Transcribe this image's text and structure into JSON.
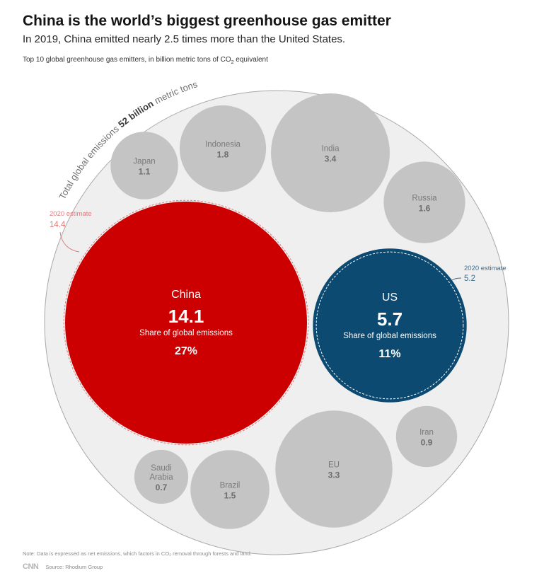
{
  "title": "China is the world’s biggest greenhouse gas emitter",
  "subtitle": "In 2019, China emitted nearly 2.5 times more than the United States.",
  "caption_main": "Top 10 global greenhouse gas emitters, in billion metric tons of CO",
  "caption_sub": "2",
  "caption_tail": " equivalent",
  "total": {
    "prefix": "Total global emissions ",
    "value": "52 billion",
    "suffix": " metric tons",
    "numeric": 52
  },
  "share_label": "Share of global emissions",
  "estimate_label": "2020 estimate",
  "chart_data": {
    "type": "bubble",
    "title": "Top 10 global greenhouse gas emitters, in billion metric tons of CO2 equivalent",
    "unit": "billion metric tons of CO2 equivalent",
    "total_emissions": 52,
    "series": [
      {
        "name": "China",
        "value": 14.1,
        "value_label": "14.1",
        "share": "27%",
        "estimate_2020": 14.4,
        "estimate_label": "14.4",
        "color": "#cc0000",
        "highlight": true
      },
      {
        "name": "US",
        "value": 5.7,
        "value_label": "5.7",
        "share": "11%",
        "estimate_2020": 5.2,
        "estimate_label": "5.2",
        "color": "#0c4a72",
        "highlight": true
      },
      {
        "name": "India",
        "value": 3.4,
        "value_label": "3.4",
        "color": "#c4c4c4"
      },
      {
        "name": "EU",
        "value": 3.3,
        "value_label": "3.3",
        "color": "#c4c4c4"
      },
      {
        "name": "Indonesia",
        "value": 1.8,
        "value_label": "1.8",
        "color": "#c4c4c4"
      },
      {
        "name": "Russia",
        "value": 1.6,
        "value_label": "1.6",
        "color": "#c4c4c4"
      },
      {
        "name": "Brazil",
        "value": 1.5,
        "value_label": "1.5",
        "color": "#c4c4c4"
      },
      {
        "name": "Japan",
        "value": 1.1,
        "value_label": "1.1",
        "color": "#c4c4c4"
      },
      {
        "name": "Iran",
        "value": 0.9,
        "value_label": "0.9",
        "color": "#c4c4c4"
      },
      {
        "name": "Saudi Arabia",
        "value": 0.7,
        "value_label": "0.7",
        "color": "#c4c4c4",
        "label_lines": [
          "Saudi",
          "Arabia"
        ]
      }
    ]
  },
  "colors": {
    "china": "#cc0000",
    "china_estimate": "#e07a7a",
    "us": "#0c4a72",
    "us_estimate": "#3d6f93",
    "other": "#c4c4c4",
    "outer": "#efefef"
  },
  "footnote": "Note: Data is expressed as net emissions, which factors in CO₂ removal through forests and land.",
  "source": "Source: Rhodium Group",
  "logo": "CNN"
}
